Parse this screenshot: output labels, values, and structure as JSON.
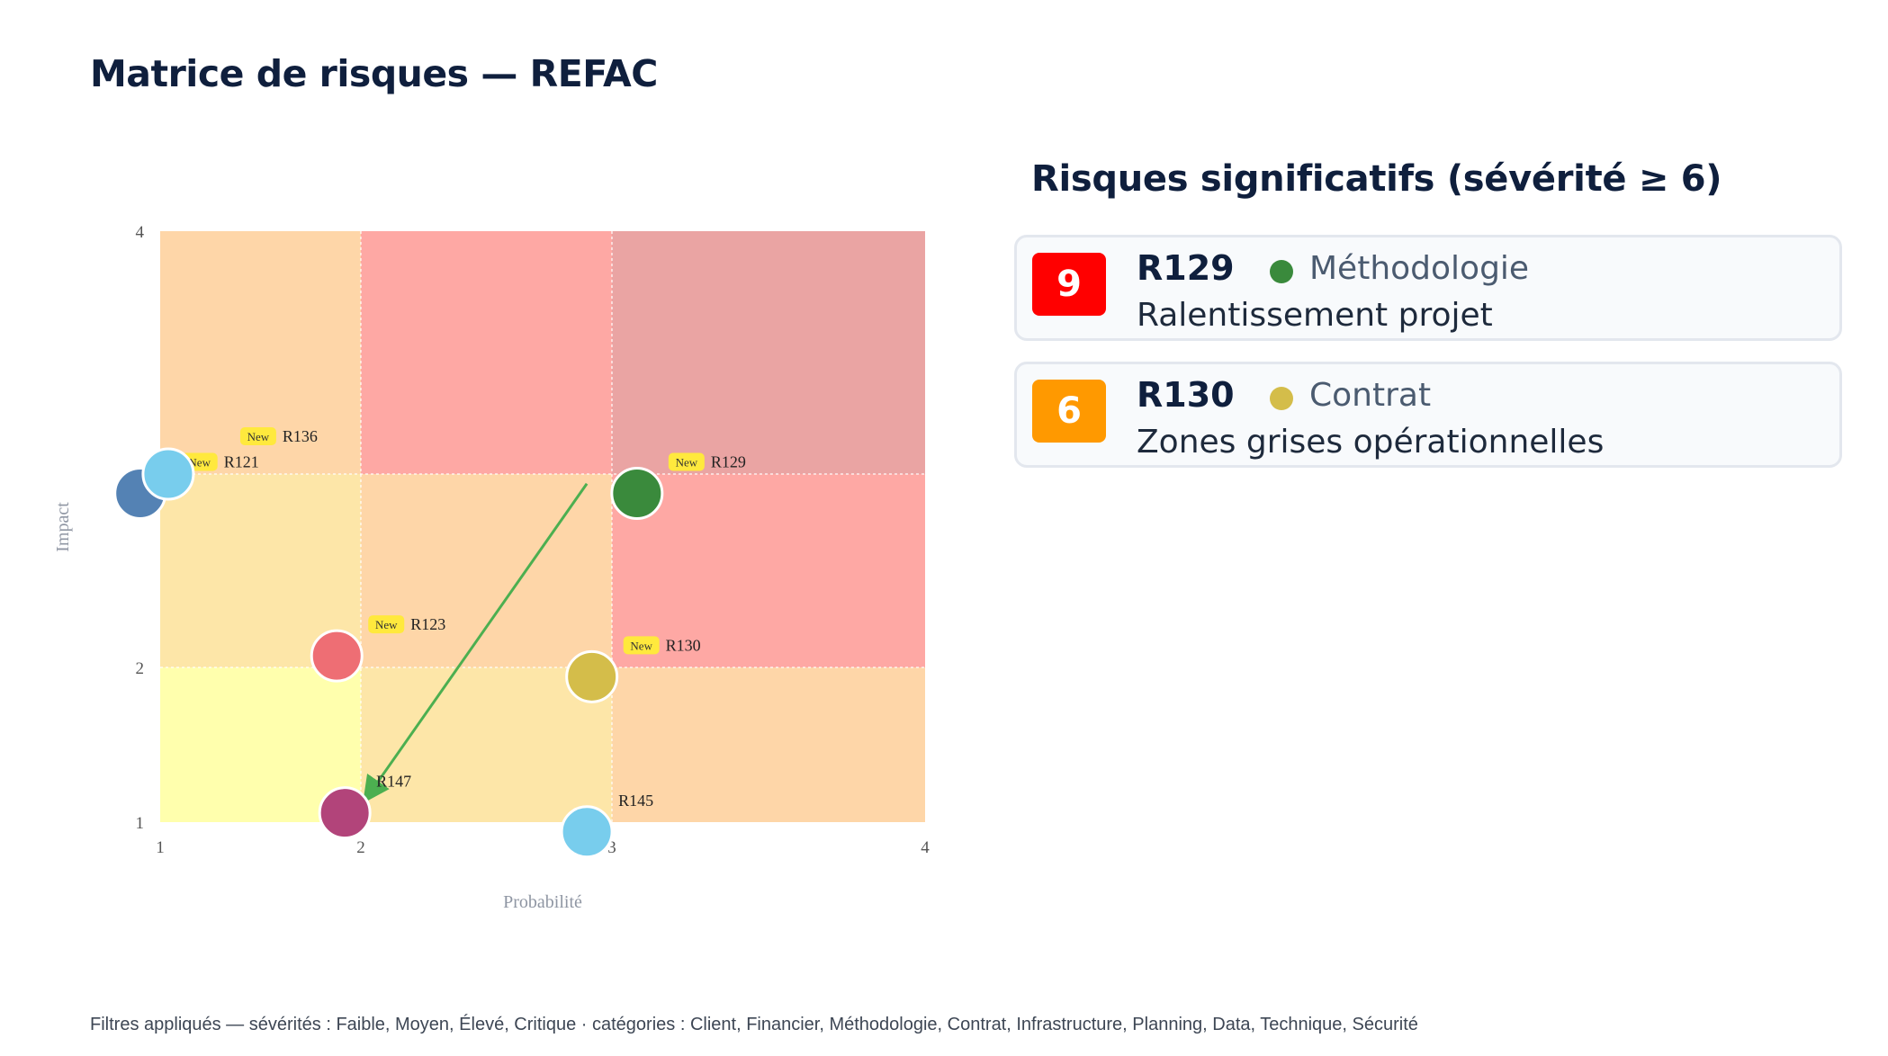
{
  "page": {
    "title": "Matrice de risques — REFAC",
    "filters": "Filtres appliqués — sévérités : Faible, Moyen, Élevé, Critique · catégories : Client, Financier, Méthodologie, Contrat, Infrastructure, Planning, Data, Technique, Sécurité"
  },
  "panel": {
    "title": "Risques significatifs (sévérité ≥ 6)",
    "risks": [
      {
        "score": "9",
        "id": "R129",
        "category": "Méthodologie",
        "description": "Ralentissement projet",
        "badge_color": "#ff0000",
        "category_color": "#3a8a3c"
      },
      {
        "score": "6",
        "id": "R130",
        "category": "Contrat",
        "description": "Zones grises opérationnelles",
        "badge_color": "#ff9900",
        "category_color": "#d4bd4a"
      }
    ]
  },
  "chart_data": {
    "type": "scatter",
    "xlabel": "Probabilité",
    "ylabel": "Impact",
    "xlim": [
      1,
      4
    ],
    "ylim": [
      1,
      4
    ],
    "xticks": [
      1,
      2,
      3,
      4
    ],
    "yticks": [
      1,
      2,
      4
    ],
    "grid": false,
    "zones": [
      {
        "x": [
          1,
          2
        ],
        "y": [
          1,
          2
        ],
        "color": "#ffffad"
      },
      {
        "x": [
          2,
          3
        ],
        "y": [
          1,
          2
        ],
        "color": "#fde6a8"
      },
      {
        "x": [
          3,
          4
        ],
        "y": [
          1,
          2
        ],
        "color": "#fed6a8"
      },
      {
        "x": [
          1,
          2
        ],
        "y": [
          2,
          3
        ],
        "color": "#fde6a8"
      },
      {
        "x": [
          2,
          3
        ],
        "y": [
          2,
          3
        ],
        "color": "#fed6a8"
      },
      {
        "x": [
          3,
          4
        ],
        "y": [
          2,
          3
        ],
        "color": "#fea8a4"
      },
      {
        "x": [
          1,
          2
        ],
        "y": [
          3,
          4
        ],
        "color": "#fed6a8"
      },
      {
        "x": [
          2,
          3
        ],
        "y": [
          3,
          4
        ],
        "color": "#fea8a4"
      },
      {
        "x": [
          3,
          4
        ],
        "y": [
          3,
          4
        ],
        "color": "#eaa4a3"
      }
    ],
    "points": [
      {
        "id": "R121",
        "x": 0.9,
        "y": 2.9,
        "color": "#5482b4",
        "new": true
      },
      {
        "id": "R136",
        "x": 1.04,
        "y": 3.0,
        "color": "#78cded",
        "new": true
      },
      {
        "id": "R129",
        "x": 3.08,
        "y": 2.9,
        "color": "#3a8a3c",
        "new": true
      },
      {
        "id": "R123",
        "x": 1.88,
        "y": 2.06,
        "color": "#ee6e74",
        "new": true
      },
      {
        "id": "R130",
        "x": 2.92,
        "y": 1.94,
        "color": "#d4bd4a",
        "new": true
      },
      {
        "id": "R147",
        "x": 1.92,
        "y": 1.06,
        "color": "#b2447a",
        "new": false
      },
      {
        "id": "R145",
        "x": 2.9,
        "y": 0.93,
        "color": "#78cded",
        "new": false
      }
    ],
    "new_badge_label": "New",
    "arrows": [
      {
        "from": [
          2.9,
          2.95
        ],
        "to": [
          2.02,
          1.15
        ],
        "color": "#4caf50"
      }
    ]
  }
}
